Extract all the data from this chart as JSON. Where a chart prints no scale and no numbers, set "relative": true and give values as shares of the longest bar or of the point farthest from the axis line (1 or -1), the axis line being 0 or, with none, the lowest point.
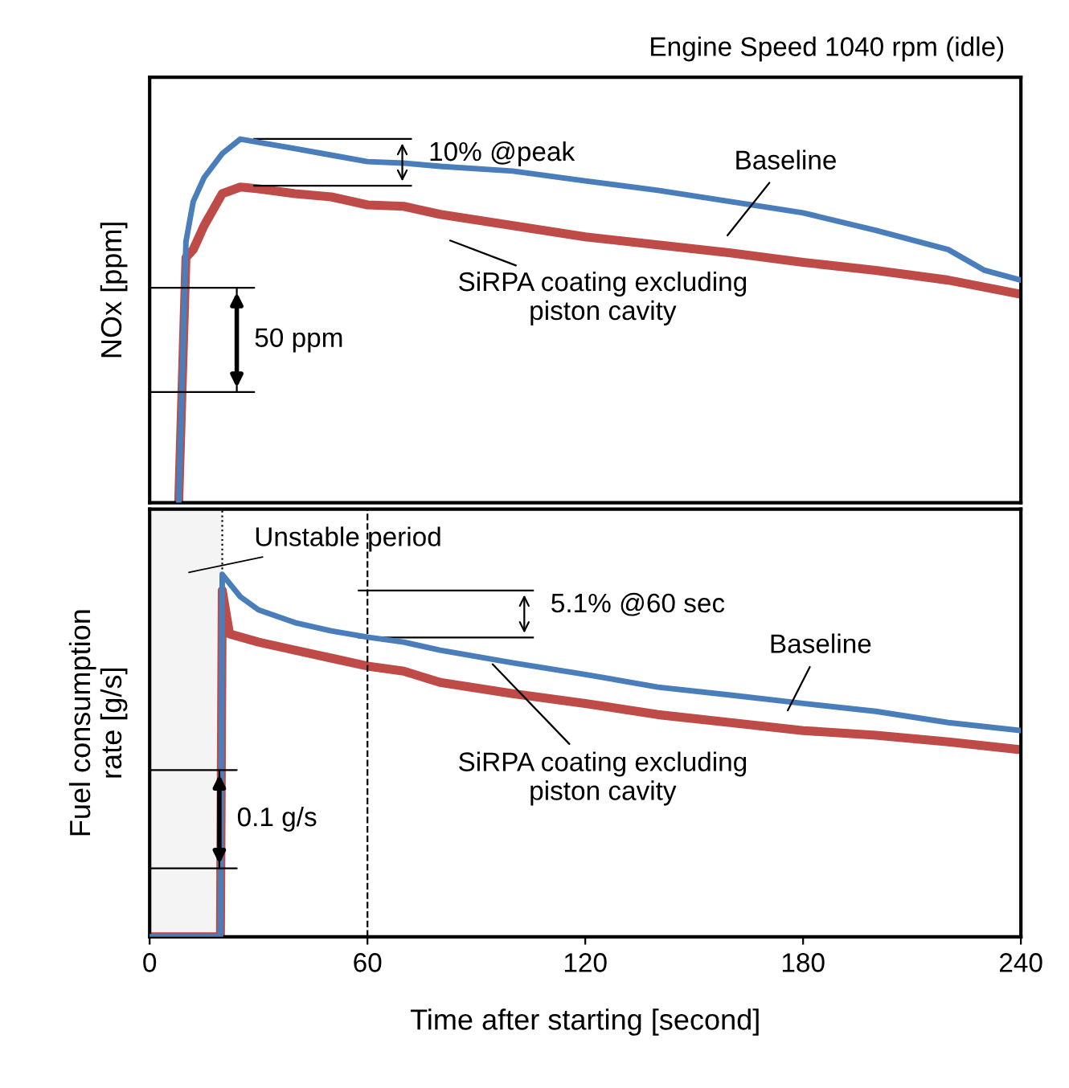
{
  "chart_data": [
    {
      "type": "line",
      "title": "Engine Speed 1040 rpm (idle)",
      "ylabel": "NOx [ppm]",
      "relative": true,
      "xlim": [
        0,
        240
      ],
      "tick_labels": false,
      "grid": false,
      "legend": false,
      "series": [
        {
          "name": "Baseline",
          "color": "#4a7ebb",
          "x": [
            8,
            10,
            12,
            15,
            20,
            25,
            30,
            40,
            50,
            60,
            70,
            80,
            100,
            120,
            140,
            160,
            180,
            200,
            220,
            230,
            240
          ],
          "values": [
            0,
            0.718,
            0.828,
            0.894,
            0.96,
            1.0,
            0.991,
            0.974,
            0.956,
            0.938,
            0.934,
            0.925,
            0.912,
            0.885,
            0.859,
            0.828,
            0.797,
            0.749,
            0.696,
            0.639,
            0.612
          ]
        },
        {
          "name": "SiRPA coating excluding\npiston cavity",
          "color": "#be4b48",
          "x": [
            8,
            10,
            12,
            15,
            20,
            25,
            30,
            40,
            50,
            60,
            70,
            80,
            100,
            120,
            140,
            160,
            180,
            200,
            220,
            240
          ],
          "values": [
            0,
            0.674,
            0.696,
            0.762,
            0.85,
            0.868,
            0.863,
            0.85,
            0.841,
            0.819,
            0.815,
            0.793,
            0.762,
            0.731,
            0.709,
            0.687,
            0.661,
            0.639,
            0.612,
            0.573
          ]
        }
      ],
      "annotations": [
        "10% @peak",
        "50 ppm"
      ]
    },
    {
      "type": "line",
      "xlabel": "Time after starting [second]",
      "ylabel": "Fuel consumption\nrate [g/s]",
      "relative": true,
      "xlim": [
        0,
        240
      ],
      "xticks": [
        0,
        60,
        120,
        180,
        240
      ],
      "tick_labels": "x",
      "grid": false,
      "legend": false,
      "ref_lines": [
        {
          "axis": "x",
          "value": 60,
          "line_style": "dashed",
          "color": "#000000"
        }
      ],
      "bands": [
        {
          "axis": "x",
          "from": 0,
          "to": 20,
          "label": "Unstable period",
          "color": "#f4f4f4"
        }
      ],
      "series": [
        {
          "name": "Baseline",
          "color": "#4a7ebb",
          "x": [
            0,
            19.5,
            20,
            25,
            30,
            40,
            50,
            60,
            70,
            80,
            100,
            120,
            140,
            160,
            180,
            200,
            220,
            240
          ],
          "values": [
            0,
            0,
            1.0,
            0.938,
            0.902,
            0.867,
            0.844,
            0.827,
            0.813,
            0.791,
            0.756,
            0.724,
            0.689,
            0.667,
            0.644,
            0.622,
            0.591,
            0.569
          ]
        },
        {
          "name": "SiRPA coating excluding\npiston cavity",
          "color": "#be4b48",
          "x": [
            0,
            19.5,
            20,
            22,
            30,
            40,
            50,
            60,
            70,
            80,
            100,
            120,
            140,
            160,
            180,
            200,
            220,
            240
          ],
          "values": [
            0,
            0,
            0.956,
            0.836,
            0.813,
            0.791,
            0.769,
            0.747,
            0.733,
            0.702,
            0.671,
            0.644,
            0.613,
            0.591,
            0.569,
            0.556,
            0.538,
            0.516
          ]
        }
      ],
      "annotations": [
        "5.1% @60 sec",
        "0.1 g/s"
      ]
    }
  ]
}
